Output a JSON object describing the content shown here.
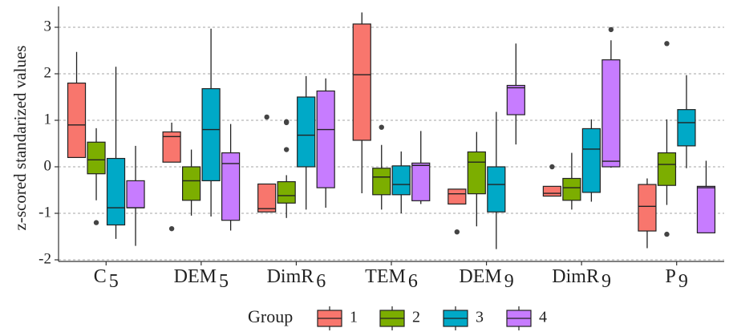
{
  "chart_data": {
    "type": "box",
    "ylabel": "z-scored standarized values",
    "ylim": [
      -2,
      3.4
    ],
    "yticks": [
      -2,
      -1,
      0,
      1,
      2,
      3
    ],
    "grid": "horizontal-dotted",
    "categories": [
      {
        "base": "C",
        "sub": "5"
      },
      {
        "base": "DEM",
        "sub": "5"
      },
      {
        "base": "DimR",
        "sub": "6"
      },
      {
        "base": "TEM",
        "sub": "6"
      },
      {
        "base": "DEM",
        "sub": "9"
      },
      {
        "base": "DimR",
        "sub": "9"
      },
      {
        "base": "P",
        "sub": "9"
      }
    ],
    "legend": {
      "title": "Group",
      "placement": "bottom",
      "entries": [
        "1",
        "2",
        "3",
        "4"
      ]
    },
    "series": [
      {
        "name": "1",
        "color": "#F8766D",
        "boxes": [
          {
            "min": 0.2,
            "q1": 0.2,
            "median": 0.9,
            "q3": 1.8,
            "max": 2.47,
            "outliers": []
          },
          {
            "min": 0.1,
            "q1": 0.1,
            "median": 0.65,
            "q3": 0.75,
            "max": 0.95,
            "outliers": [
              -1.33
            ]
          },
          {
            "min": -0.97,
            "q1": -0.97,
            "median": -0.9,
            "q3": -0.37,
            "max": -0.37,
            "outliers": [
              1.07
            ]
          },
          {
            "min": -0.57,
            "q1": 0.57,
            "median": 1.98,
            "q3": 3.07,
            "max": 3.32,
            "outliers": []
          },
          {
            "min": -0.8,
            "q1": -0.8,
            "median": -0.58,
            "q3": -0.48,
            "max": -0.48,
            "outliers": [
              -1.4
            ]
          },
          {
            "min": -0.63,
            "q1": -0.63,
            "median": -0.57,
            "q3": -0.42,
            "max": -0.42,
            "outliers": [
              0.0
            ]
          },
          {
            "min": -1.75,
            "q1": -1.38,
            "median": -0.85,
            "q3": -0.38,
            "max": -0.25,
            "outliers": []
          }
        ]
      },
      {
        "name": "2",
        "color": "#7CAE00",
        "boxes": [
          {
            "min": -0.72,
            "q1": -0.15,
            "median": 0.15,
            "q3": 0.53,
            "max": 0.83,
            "outliers": [
              -1.2
            ]
          },
          {
            "min": -1.05,
            "q1": -0.72,
            "median": -0.3,
            "q3": 0.0,
            "max": 0.37,
            "outliers": []
          },
          {
            "min": -1.1,
            "q1": -0.78,
            "median": -0.62,
            "q3": -0.32,
            "max": -0.18,
            "outliers": [
              0.37,
              0.95,
              0.97
            ]
          },
          {
            "min": -0.92,
            "q1": -0.6,
            "median": -0.22,
            "q3": -0.03,
            "max": 0.47,
            "outliers": [
              0.85
            ]
          },
          {
            "min": -1.28,
            "q1": -0.58,
            "median": 0.1,
            "q3": 0.32,
            "max": 0.75,
            "outliers": []
          },
          {
            "min": -0.92,
            "q1": -0.72,
            "median": -0.45,
            "q3": -0.25,
            "max": 0.3,
            "outliers": []
          },
          {
            "min": -0.82,
            "q1": -0.4,
            "median": 0.05,
            "q3": 0.3,
            "max": 1.02,
            "outliers": [
              -1.45,
              2.65
            ]
          }
        ]
      },
      {
        "name": "3",
        "color": "#00A9C7",
        "boxes": [
          {
            "min": -1.55,
            "q1": -1.25,
            "median": -0.88,
            "q3": 0.18,
            "max": 2.15,
            "outliers": []
          },
          {
            "min": -1.07,
            "q1": -0.3,
            "median": 0.8,
            "q3": 1.68,
            "max": 2.97,
            "outliers": []
          },
          {
            "min": -0.92,
            "q1": 0.0,
            "median": 0.68,
            "q3": 1.5,
            "max": 1.95,
            "outliers": []
          },
          {
            "min": -1.0,
            "q1": -0.6,
            "median": -0.38,
            "q3": 0.02,
            "max": 0.33,
            "outliers": []
          },
          {
            "min": -1.77,
            "q1": -0.97,
            "median": -0.38,
            "q3": 0.0,
            "max": 1.18,
            "outliers": []
          },
          {
            "min": -0.75,
            "q1": -0.55,
            "median": 0.38,
            "q3": 0.82,
            "max": 1.02,
            "outliers": []
          },
          {
            "min": -0.03,
            "q1": 0.45,
            "median": 0.95,
            "q3": 1.23,
            "max": 1.97,
            "outliers": []
          }
        ]
      },
      {
        "name": "4",
        "color": "#C77CFF",
        "boxes": [
          {
            "min": -1.7,
            "q1": -0.88,
            "median": -0.88,
            "q3": -0.3,
            "max": 0.45,
            "outliers": []
          },
          {
            "min": -1.37,
            "q1": -1.15,
            "median": 0.07,
            "q3": 0.3,
            "max": 0.92,
            "outliers": []
          },
          {
            "min": -0.88,
            "q1": -0.45,
            "median": 0.8,
            "q3": 1.63,
            "max": 1.9,
            "outliers": []
          },
          {
            "min": -0.8,
            "q1": -0.73,
            "median": 0.03,
            "q3": 0.08,
            "max": 0.77,
            "outliers": []
          },
          {
            "min": 0.48,
            "q1": 1.12,
            "median": 1.7,
            "q3": 1.75,
            "max": 2.65,
            "outliers": []
          },
          {
            "min": -0.02,
            "q1": 0.0,
            "median": 0.12,
            "q3": 2.3,
            "max": 2.72,
            "outliers": [
              2.95
            ]
          },
          {
            "min": -1.42,
            "q1": -1.42,
            "median": -0.45,
            "q3": -0.42,
            "max": 0.13,
            "outliers": []
          }
        ]
      }
    ]
  }
}
